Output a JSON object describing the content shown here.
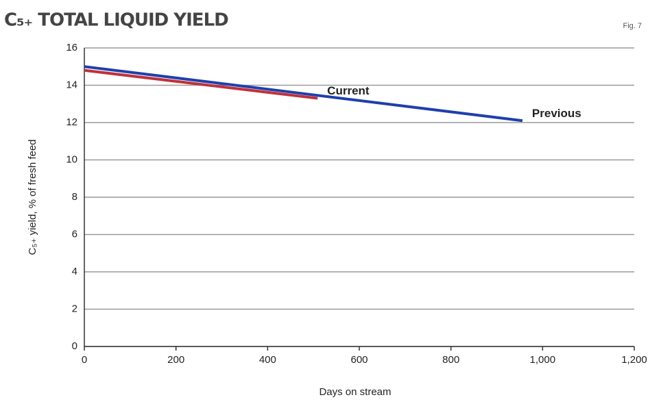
{
  "chart_data": {
    "type": "line",
    "title": "C₅₊ TOTAL LIQUID YIELD",
    "annotation": "Fig. 7",
    "x_label": "Days on stream",
    "y_label": "C₅₊ yield, % of fresh feed",
    "series": [
      {
        "name": "Previous",
        "color": "#1f3fae",
        "x": [
          0,
          956
        ],
        "values": [
          15.0,
          12.1
        ]
      },
      {
        "name": "Current",
        "color": "#c0313a",
        "x": [
          0,
          509
        ],
        "values": [
          14.8,
          13.3
        ]
      }
    ],
    "xlim": [
      0,
      1200
    ],
    "xticks": [
      0,
      200,
      400,
      600,
      800,
      {
        "value": 1000,
        "label": "1,000"
      },
      {
        "value": 1200,
        "label": "1,200"
      }
    ],
    "ylim": [
      0,
      16
    ],
    "yticks": [
      0,
      2,
      4,
      6,
      8,
      10,
      12,
      14,
      16
    ],
    "grid": true
  }
}
